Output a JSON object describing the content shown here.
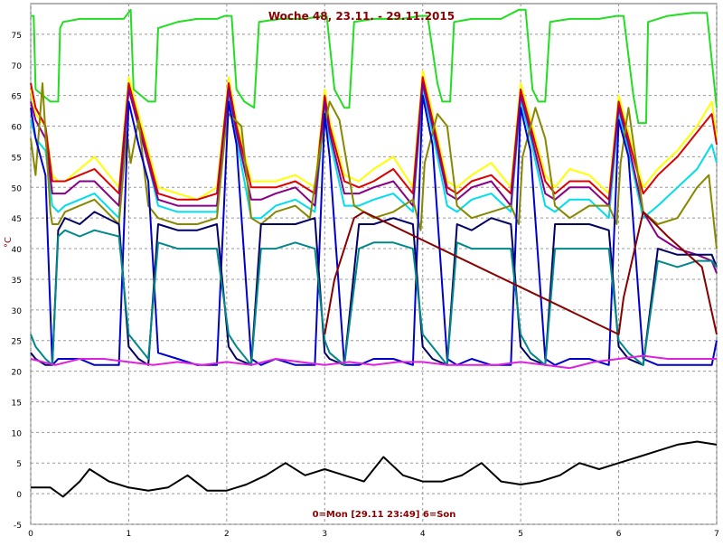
{
  "chart_data": {
    "type": "line",
    "title": "Woche 48, 23.11. - 29.11.2015",
    "xlabel": "0=Mon [29.11 23:49] 6=Son",
    "ylabel": "°C",
    "xlim": [
      0,
      7
    ],
    "ylim": [
      -5,
      80
    ],
    "x_ticks": [
      0,
      1,
      2,
      3,
      4,
      5,
      6,
      7
    ],
    "y_ticks": [
      -5,
      0,
      5,
      10,
      15,
      20,
      25,
      30,
      35,
      40,
      45,
      50,
      55,
      60,
      65,
      70,
      75
    ],
    "grid": true,
    "series": [
      {
        "color": "#22dd22",
        "x": [
          0,
          0.03,
          0.05,
          0.2,
          0.22,
          0.28,
          0.3,
          0.33,
          0.5,
          0.7,
          0.95,
          1.02,
          1.05,
          1.2,
          1.25,
          1.27,
          1.3,
          1.5,
          1.7,
          1.9,
          1.98,
          2.05,
          2.1,
          2.18,
          2.28,
          2.33,
          2.55,
          2.8,
          2.98,
          3.02,
          3.1,
          3.2,
          3.25,
          3.3,
          3.5,
          3.8,
          3.97,
          4.05,
          4.15,
          4.2,
          4.28,
          4.32,
          4.5,
          4.8,
          4.98,
          5.05,
          5.12,
          5.18,
          5.25,
          5.3,
          5.5,
          5.8,
          5.98,
          6.05,
          6.15,
          6.2,
          6.28,
          6.3,
          6.5,
          6.75,
          6.9,
          7.0
        ],
        "values": [
          78,
          78,
          66,
          64,
          64,
          64,
          76,
          77,
          77.5,
          77.5,
          77.5,
          79,
          66,
          64,
          64,
          64,
          76,
          77,
          77.5,
          77.5,
          78,
          78,
          66,
          64,
          63,
          77,
          77.5,
          77.5,
          78,
          78,
          66,
          63,
          63,
          77,
          77.5,
          77.5,
          78,
          78,
          67,
          64,
          64,
          77,
          77.5,
          77.5,
          79,
          79,
          66,
          64,
          64,
          77,
          77.5,
          77.5,
          78,
          78,
          65,
          60.5,
          60.5,
          77,
          78,
          78.5,
          78.5,
          63
        ]
      },
      {
        "color": "#ffff00",
        "x": [
          0,
          0.05,
          0.15,
          0.22,
          0.28,
          0.35,
          0.5,
          0.65,
          0.9,
          1.0,
          1.1,
          1.2,
          1.3,
          1.5,
          1.7,
          1.9,
          2.02,
          2.1,
          2.25,
          2.35,
          2.5,
          2.7,
          2.9,
          3.0,
          3.05,
          3.2,
          3.35,
          3.5,
          3.7,
          3.9,
          4.0,
          4.1,
          4.25,
          4.35,
          4.5,
          4.7,
          4.9,
          5.0,
          5.1,
          5.25,
          5.35,
          5.5,
          5.7,
          5.9,
          6.0,
          6.1,
          6.25,
          6.4,
          6.6,
          6.8,
          6.95,
          7.0
        ],
        "values": [
          66,
          62,
          60,
          52,
          51,
          51,
          53,
          55,
          50,
          68,
          62,
          56,
          50,
          49,
          48,
          50,
          68,
          61,
          51,
          51,
          51,
          52,
          50,
          66,
          61,
          52,
          51,
          53,
          55,
          50,
          69,
          62,
          51,
          50,
          52,
          54,
          50,
          67,
          61,
          52,
          50,
          53,
          52,
          49,
          65,
          59,
          50,
          53,
          56,
          60,
          64,
          58
        ]
      },
      {
        "color": "#dd0000",
        "x": [
          0,
          0.05,
          0.15,
          0.22,
          0.28,
          0.35,
          0.5,
          0.65,
          0.9,
          1.0,
          1.1,
          1.2,
          1.3,
          1.5,
          1.7,
          1.9,
          2.02,
          2.1,
          2.25,
          2.35,
          2.5,
          2.7,
          2.9,
          3.0,
          3.05,
          3.2,
          3.35,
          3.5,
          3.7,
          3.9,
          4.0,
          4.1,
          4.25,
          4.35,
          4.5,
          4.7,
          4.9,
          5.0,
          5.1,
          5.25,
          5.35,
          5.5,
          5.7,
          5.9,
          6.0,
          6.1,
          6.25,
          6.4,
          6.6,
          6.8,
          6.95,
          7.0
        ],
        "values": [
          67,
          63,
          60,
          51,
          51,
          51,
          52,
          53,
          49,
          67,
          61,
          55,
          49,
          48,
          48,
          49,
          67,
          60,
          50,
          50,
          50,
          51,
          49,
          65,
          60,
          51,
          50,
          51,
          53,
          49,
          68,
          61,
          50,
          49,
          51,
          52,
          49,
          66,
          60,
          51,
          49,
          51,
          51,
          48,
          64,
          58,
          49,
          52,
          55,
          59,
          62,
          57
        ]
      },
      {
        "color": "#00ddee",
        "x": [
          0,
          0.05,
          0.15,
          0.22,
          0.28,
          0.35,
          0.5,
          0.65,
          0.9,
          1.0,
          1.1,
          1.2,
          1.3,
          1.5,
          1.7,
          1.9,
          2.02,
          2.1,
          2.25,
          2.35,
          2.5,
          2.7,
          2.9,
          3.0,
          3.05,
          3.2,
          3.35,
          3.5,
          3.7,
          3.9,
          4.0,
          4.1,
          4.25,
          4.35,
          4.5,
          4.7,
          4.9,
          5.0,
          5.1,
          5.25,
          5.35,
          5.5,
          5.7,
          5.9,
          6.0,
          6.1,
          6.25,
          6.4,
          6.6,
          6.8,
          6.95,
          7.0
        ],
        "values": [
          61,
          58,
          56,
          47,
          46,
          47,
          48,
          49,
          45,
          66,
          60,
          54,
          47,
          46,
          46,
          46,
          65,
          58,
          45,
          45,
          47,
          48,
          46,
          63,
          58,
          47,
          47,
          48,
          49,
          46,
          66,
          59,
          47,
          46,
          48,
          49,
          46,
          64,
          58,
          47,
          46,
          48,
          48,
          45,
          62,
          56,
          45,
          47,
          50,
          53,
          57,
          54
        ]
      },
      {
        "color": "#880088",
        "x": [
          0,
          0.05,
          0.15,
          0.22,
          0.28,
          0.35,
          0.5,
          0.65,
          0.9,
          1.0,
          1.1,
          1.2,
          1.3,
          1.5,
          1.7,
          1.9,
          2.02,
          2.1,
          2.25,
          2.35,
          2.5,
          2.7,
          2.9,
          3.0,
          3.05,
          3.2,
          3.35,
          3.5,
          3.7,
          3.9,
          4.0,
          4.1,
          4.25,
          4.35,
          4.5,
          4.7,
          4.9,
          5.0,
          5.1,
          5.25,
          5.35,
          5.5,
          5.7,
          5.9,
          6.0,
          6.1,
          6.25,
          6.4,
          6.6,
          6.8,
          6.95,
          7.0
        ],
        "values": [
          64,
          61,
          58,
          49,
          49,
          49,
          51,
          51,
          47,
          66,
          60,
          54,
          48,
          47,
          47,
          47,
          66,
          59,
          48,
          48,
          49,
          50,
          47,
          64,
          59,
          49,
          49,
          50,
          51,
          47,
          67,
          60,
          49,
          48,
          50,
          51,
          47,
          65,
          59,
          49,
          48,
          50,
          50,
          47,
          63,
          57,
          46,
          42,
          40,
          39,
          38,
          36
        ]
      },
      {
        "color": "#888800",
        "x": [
          0,
          0.05,
          0.12,
          0.2,
          0.22,
          0.28,
          0.35,
          0.5,
          0.65,
          0.9,
          0.98,
          1.02,
          1.1,
          1.2,
          1.3,
          1.5,
          1.7,
          1.9,
          1.98,
          2.02,
          2.15,
          2.25,
          2.35,
          2.5,
          2.7,
          2.85,
          2.95,
          3.05,
          3.15,
          3.3,
          3.5,
          3.7,
          3.9,
          3.98,
          4.02,
          4.15,
          4.25,
          4.35,
          4.5,
          4.7,
          4.9,
          4.98,
          5.02,
          5.15,
          5.25,
          5.35,
          5.5,
          5.7,
          5.9,
          5.98,
          6.02,
          6.1,
          6.25,
          6.4,
          6.6,
          6.8,
          6.92,
          7.0
        ],
        "values": [
          58,
          52,
          67,
          46,
          44,
          44,
          46,
          47,
          48,
          44,
          59,
          54,
          61,
          47,
          45,
          44,
          44,
          45,
          58,
          62,
          60,
          45,
          44,
          46,
          47,
          45,
          56,
          64,
          61,
          47,
          45,
          46,
          48,
          43,
          54,
          62,
          60,
          47,
          45,
          46,
          47,
          44,
          55,
          63,
          58,
          47,
          45,
          47,
          47,
          44,
          54,
          63,
          46,
          44,
          45,
          50,
          52,
          40
        ]
      },
      {
        "color": "#0000cc",
        "x": [
          0,
          0.05,
          0.15,
          0.22,
          0.28,
          0.35,
          0.5,
          0.65,
          0.9,
          1.0,
          1.1,
          1.2,
          1.3,
          1.5,
          1.7,
          1.9,
          2.02,
          2.1,
          2.25,
          2.35,
          2.5,
          2.7,
          2.9,
          3.0,
          3.05,
          3.2,
          3.35,
          3.5,
          3.7,
          3.9,
          4.0,
          4.1,
          4.25,
          4.35,
          4.5,
          4.7,
          4.9,
          5.0,
          5.1,
          5.25,
          5.35,
          5.5,
          5.7,
          5.9,
          6.0,
          6.1,
          6.25,
          6.4,
          6.6,
          6.8,
          6.95,
          7.0
        ],
        "values": [
          63,
          58,
          52,
          21,
          22,
          22,
          22,
          21,
          21,
          64,
          57,
          51,
          23,
          22,
          21,
          21,
          64,
          57,
          22,
          21,
          22,
          21,
          21,
          62,
          55,
          21,
          21,
          22,
          22,
          21,
          65,
          57,
          22,
          21,
          22,
          21,
          21,
          63,
          56,
          22,
          21,
          22,
          22,
          21,
          61,
          55,
          22,
          21,
          21,
          21,
          21,
          25
        ]
      },
      {
        "color": "#000066",
        "x": [
          0,
          0.05,
          0.15,
          0.22,
          0.28,
          0.35,
          0.5,
          0.65,
          0.9,
          1.0,
          1.1,
          1.2,
          1.3,
          1.5,
          1.7,
          1.9,
          2.02,
          2.1,
          2.25,
          2.35,
          2.5,
          2.7,
          2.9,
          3.0,
          3.05,
          3.2,
          3.35,
          3.5,
          3.7,
          3.9,
          4.0,
          4.1,
          4.25,
          4.35,
          4.5,
          4.7,
          4.9,
          5.0,
          5.1,
          5.25,
          5.35,
          5.5,
          5.7,
          5.9,
          6.0,
          6.1,
          6.25,
          6.4,
          6.6,
          6.8,
          6.95,
          7.0
        ],
        "values": [
          23,
          22,
          21,
          21,
          43,
          45,
          44,
          46,
          44,
          24,
          22,
          21,
          44,
          43,
          43,
          44,
          24,
          22,
          21,
          44,
          44,
          44,
          45,
          23,
          22,
          21,
          44,
          44,
          45,
          44,
          24,
          22,
          21,
          44,
          43,
          45,
          44,
          24,
          22,
          21,
          44,
          44,
          44,
          43,
          24,
          22,
          21,
          40,
          39,
          39,
          39,
          37
        ]
      },
      {
        "color": "#008888",
        "x": [
          0,
          0.05,
          0.15,
          0.22,
          0.28,
          0.35,
          0.5,
          0.65,
          0.9,
          1.0,
          1.1,
          1.2,
          1.3,
          1.5,
          1.7,
          1.9,
          2.02,
          2.1,
          2.25,
          2.35,
          2.5,
          2.7,
          2.9,
          3.0,
          3.05,
          3.2,
          3.35,
          3.5,
          3.7,
          3.9,
          4.0,
          4.1,
          4.25,
          4.35,
          4.5,
          4.7,
          4.9,
          5.0,
          5.1,
          5.25,
          5.35,
          5.5,
          5.7,
          5.9,
          6.0,
          6.1,
          6.25,
          6.4,
          6.6,
          6.8,
          6.95,
          7.0
        ],
        "values": [
          26,
          24,
          22,
          21,
          42,
          43,
          42,
          43,
          42,
          26,
          24,
          22,
          41,
          40,
          40,
          40,
          26,
          24,
          21,
          40,
          40,
          41,
          40,
          25,
          23,
          21,
          40,
          41,
          41,
          40,
          26,
          24,
          21,
          41,
          40,
          40,
          40,
          26,
          23,
          21,
          40,
          40,
          40,
          40,
          25,
          23,
          21,
          38,
          37,
          38,
          38,
          37
        ]
      },
      {
        "color": "#880000",
        "x": [
          3.0,
          3.1,
          3.2,
          3.3,
          3.4,
          6.0,
          6.05,
          6.25,
          6.5,
          6.85,
          7.0
        ],
        "values": [
          26,
          35,
          40,
          45,
          46,
          26,
          32,
          46,
          42,
          37,
          26
        ]
      },
      {
        "color": "#dd22dd",
        "x": [
          0,
          0.25,
          0.5,
          0.75,
          1.0,
          1.25,
          1.5,
          1.75,
          2.0,
          2.25,
          2.5,
          2.75,
          3.0,
          3.25,
          3.5,
          3.75,
          4.0,
          4.25,
          4.5,
          4.75,
          5.0,
          5.25,
          5.5,
          5.75,
          6.0,
          6.25,
          6.5,
          6.75,
          7.0
        ],
        "values": [
          22,
          21,
          22,
          22,
          21.5,
          21,
          21.5,
          21,
          21.5,
          21,
          22,
          21.5,
          21,
          21.5,
          21,
          21.5,
          21.5,
          21,
          21,
          21,
          21.5,
          21,
          20.5,
          21.5,
          22,
          22.5,
          22,
          22,
          22
        ]
      },
      {
        "color": "#000000",
        "x": [
          0,
          0.2,
          0.33,
          0.5,
          0.6,
          0.8,
          1.0,
          1.2,
          1.4,
          1.6,
          1.8,
          2.0,
          2.2,
          2.4,
          2.6,
          2.8,
          3.0,
          3.2,
          3.4,
          3.6,
          3.8,
          4.0,
          4.2,
          4.4,
          4.6,
          4.8,
          5.0,
          5.2,
          5.4,
          5.6,
          5.8,
          6.0,
          6.2,
          6.4,
          6.6,
          6.8,
          7.0
        ],
        "values": [
          1,
          1,
          -0.5,
          2,
          4,
          2,
          1,
          0.5,
          1,
          3,
          0.5,
          0.5,
          1.5,
          3,
          5,
          3,
          4,
          3,
          2,
          6,
          3,
          2,
          2,
          3,
          5,
          2,
          1.5,
          2,
          3,
          5,
          4,
          5,
          6,
          7,
          8,
          8.5,
          8
        ]
      }
    ]
  }
}
